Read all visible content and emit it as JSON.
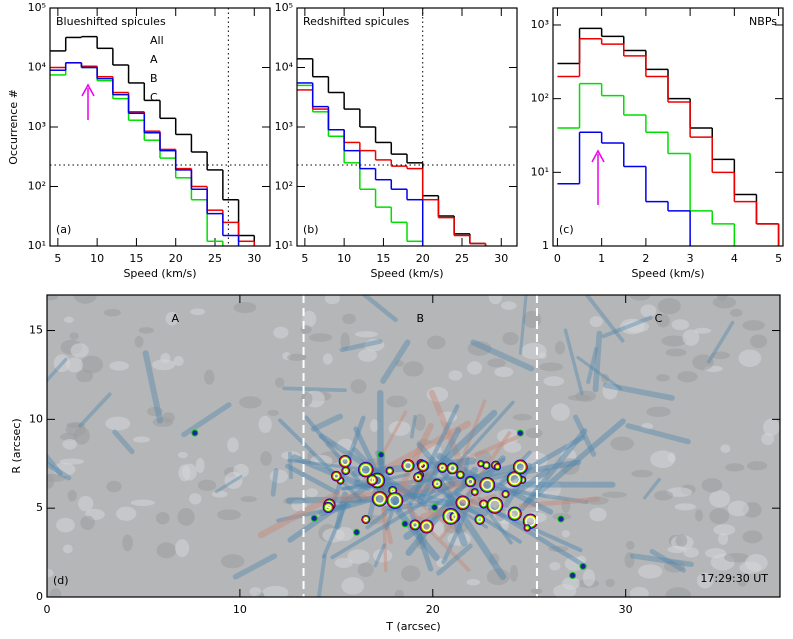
{
  "chart_data": [
    {
      "type": "step",
      "title": "Blueshifted spicules",
      "title_position": "top-left",
      "xlabel": "Speed (km/s)",
      "ylabel": "Occurrence #",
      "panel_label": "(a)",
      "log_y": true,
      "legend": "top-center",
      "xlim": [
        4,
        32
      ],
      "xticks": [
        5,
        10,
        15,
        20,
        25,
        30
      ],
      "ylim": [
        10,
        100000
      ],
      "yticks": [
        {
          "value": 10,
          "label": "10¹"
        },
        {
          "value": 100,
          "label": "10²"
        },
        {
          "value": 1000,
          "label": "10³"
        },
        {
          "value": 10000,
          "label": "10⁴"
        },
        {
          "value": 100000,
          "label": "10⁵"
        }
      ],
      "reference_lines": {
        "x": 26.7,
        "y": 230
      },
      "x": [
        5,
        7,
        9,
        11,
        13,
        15,
        17,
        19,
        21,
        23,
        25,
        27,
        29
      ],
      "series": [
        {
          "name": "All",
          "color": "#000000",
          "values": [
            19000,
            32000,
            33000,
            21000,
            11000,
            5500,
            2800,
            1400,
            750,
            380,
            190,
            60,
            15
          ]
        },
        {
          "name": "A",
          "color": "#00dd00",
          "values": [
            7500,
            12000,
            10000,
            6000,
            3000,
            1300,
            600,
            300,
            140,
            60,
            12,
            null,
            null
          ]
        },
        {
          "name": "B",
          "color": "#ee0000",
          "values": [
            10000,
            12000,
            10500,
            7000,
            3800,
            1800,
            850,
            420,
            200,
            100,
            40,
            25,
            12
          ]
        },
        {
          "name": "C",
          "color": "#0000ee",
          "values": [
            9000,
            12000,
            10000,
            6500,
            3500,
            1700,
            800,
            400,
            190,
            90,
            35,
            15,
            null
          ]
        }
      ]
    },
    {
      "type": "step",
      "title": "Redshifted spicules",
      "title_position": "top-left",
      "xlabel": "Speed (km/s)",
      "panel_label": "(b)",
      "log_y": true,
      "xlim": [
        4,
        32
      ],
      "xticks": [
        5,
        10,
        15,
        20,
        25,
        30
      ],
      "ylim": [
        10,
        100000
      ],
      "yticks": [
        {
          "value": 10,
          "label": "10¹"
        },
        {
          "value": 100,
          "label": "10²"
        },
        {
          "value": 1000,
          "label": "10³"
        },
        {
          "value": 10000,
          "label": "10⁴"
        },
        {
          "value": 100000,
          "label": "10⁵"
        }
      ],
      "reference_lines": {
        "x": 20,
        "y": 230
      },
      "x": [
        5,
        7,
        9,
        11,
        13,
        15,
        17,
        19,
        21,
        23,
        25,
        27,
        29
      ],
      "series": [
        {
          "color": "#000000",
          "values": [
            14000,
            7000,
            3800,
            2000,
            1000,
            550,
            350,
            250,
            70,
            32,
            16,
            11,
            null
          ]
        },
        {
          "color": "#00dd00",
          "values": [
            5000,
            1800,
            700,
            250,
            90,
            45,
            25,
            12,
            null,
            null,
            null,
            null,
            null
          ]
        },
        {
          "color": "#ee0000",
          "values": [
            4200,
            2000,
            900,
            550,
            400,
            280,
            220,
            200,
            60,
            30,
            15,
            11,
            null
          ]
        },
        {
          "color": "#0000ee",
          "values": [
            5500,
            2200,
            900,
            400,
            200,
            130,
            90,
            60,
            null,
            null,
            null,
            null,
            null
          ]
        }
      ]
    },
    {
      "type": "step",
      "title": "NBPs",
      "title_position": "top-right",
      "xlabel": "Speed (km/s)",
      "panel_label": "(c)",
      "log_y": true,
      "xlim": [
        -0.1,
        5.1
      ],
      "xticks": [
        0,
        1,
        2,
        3,
        4,
        5
      ],
      "ylim": [
        1,
        1700
      ],
      "yticks": [
        1,
        {
          "value": 10,
          "label": "10¹"
        },
        {
          "value": 100,
          "label": "10²"
        },
        {
          "value": 1000,
          "label": "10³"
        }
      ],
      "x": [
        0.25,
        0.75,
        1.25,
        1.75,
        2.25,
        2.75,
        3.25,
        3.75,
        4.25,
        4.75
      ],
      "series": [
        {
          "color": "#000000",
          "values": [
            300,
            900,
            700,
            450,
            250,
            100,
            40,
            15,
            5,
            2
          ]
        },
        {
          "color": "#ee0000",
          "values": [
            200,
            650,
            550,
            380,
            200,
            90,
            30,
            10,
            4,
            2
          ]
        },
        {
          "color": "#00dd00",
          "values": [
            40,
            160,
            110,
            60,
            35,
            18,
            3,
            2,
            null,
            null
          ]
        },
        {
          "color": "#0000ee",
          "values": [
            7,
            35,
            25,
            12,
            4,
            3,
            null,
            null,
            null,
            null
          ]
        }
      ]
    },
    {
      "type": "image",
      "xlabel": "T (arcsec)",
      "ylabel": "R (arcsec)",
      "panel_label": "(d)",
      "timestamp": "17:29:30 UT",
      "xlim": [
        0,
        38
      ],
      "xticks": [
        0,
        10,
        20,
        30
      ],
      "ylim": [
        0,
        17
      ],
      "yticks": [
        0,
        5,
        10,
        15
      ],
      "dividers": [
        13.3,
        25.4
      ],
      "region_labels": [
        "A",
        "B",
        "C"
      ]
    }
  ]
}
